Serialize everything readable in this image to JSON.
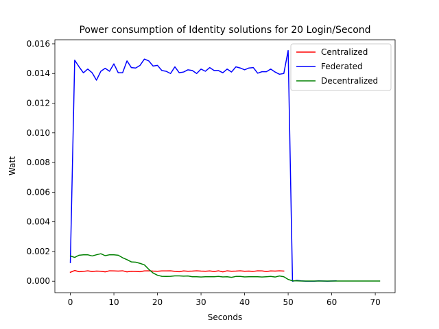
{
  "chart_data": {
    "type": "line",
    "title": "Power consumption of Identity solutions for 20 Login/Second",
    "xlabel": "Seconds",
    "ylabel": "Watt",
    "xlim": [
      -3.55,
      74.55
    ],
    "ylim": [
      -0.000775,
      0.016275
    ],
    "xticks": [
      0,
      10,
      20,
      30,
      40,
      50,
      60,
      70
    ],
    "yticks": [
      0.0,
      0.002,
      0.004,
      0.006,
      0.008,
      0.01,
      0.012,
      0.014,
      0.016
    ],
    "ytick_labels": [
      "0.000",
      "0.002",
      "0.004",
      "0.006",
      "0.008",
      "0.010",
      "0.012",
      "0.014",
      "0.016"
    ],
    "legend_position": "top-right",
    "grid": false,
    "series": [
      {
        "name": "Centralized",
        "color": "#ff0000",
        "x": [
          0,
          1,
          2,
          3,
          4,
          5,
          6,
          7,
          8,
          9,
          10,
          11,
          12,
          13,
          14,
          15,
          16,
          17,
          18,
          19,
          20,
          21,
          22,
          23,
          24,
          25,
          26,
          27,
          28,
          29,
          30,
          31,
          32,
          33,
          34,
          35,
          36,
          37,
          38,
          39,
          40,
          41,
          42,
          43,
          44,
          45,
          46,
          47,
          48,
          49
        ],
        "y": [
          0.0006,
          0.00072,
          0.00064,
          0.00066,
          0.0007,
          0.00065,
          0.00068,
          0.00067,
          0.00063,
          0.0007,
          0.00069,
          0.00068,
          0.0007,
          0.00063,
          0.00067,
          0.00066,
          0.00064,
          0.00069,
          0.0007,
          0.00068,
          0.00067,
          0.00069,
          0.00069,
          0.0007,
          0.00066,
          0.00064,
          0.00069,
          0.00067,
          0.00068,
          0.0007,
          0.00068,
          0.00067,
          0.00069,
          0.00065,
          0.0007,
          0.00063,
          0.0007,
          0.00067,
          0.00068,
          0.0007,
          0.00067,
          0.00068,
          0.00066,
          0.0007,
          0.00069,
          0.00065,
          0.00069,
          0.00068,
          0.0007,
          0.00068
        ]
      },
      {
        "name": "Federated",
        "color": "#0000ff",
        "x": [
          0,
          1,
          2,
          3,
          4,
          5,
          6,
          7,
          8,
          9,
          10,
          11,
          12,
          13,
          14,
          15,
          16,
          17,
          18,
          19,
          20,
          21,
          22,
          23,
          24,
          25,
          26,
          27,
          28,
          29,
          30,
          31,
          32,
          33,
          34,
          35,
          36,
          37,
          38,
          39,
          40,
          41,
          42,
          43,
          44,
          45,
          46,
          47,
          48,
          49,
          50,
          51,
          52,
          53,
          54,
          55,
          56,
          57,
          58,
          59,
          60,
          61
        ],
        "y": [
          0.00125,
          0.0149,
          0.01445,
          0.01405,
          0.0143,
          0.01405,
          0.01355,
          0.01415,
          0.01435,
          0.01415,
          0.01465,
          0.01405,
          0.01405,
          0.01485,
          0.0144,
          0.01437,
          0.01455,
          0.01497,
          0.01485,
          0.0145,
          0.01455,
          0.0142,
          0.01415,
          0.014,
          0.01445,
          0.01405,
          0.0141,
          0.01425,
          0.0142,
          0.014,
          0.0143,
          0.01415,
          0.0144,
          0.0142,
          0.0142,
          0.01405,
          0.0143,
          0.0141,
          0.01445,
          0.01437,
          0.01425,
          0.01437,
          0.0144,
          0.01402,
          0.01412,
          0.01412,
          0.0143,
          0.0141,
          0.01395,
          0.014,
          0.01555,
          0.0,
          5e-05,
          2e-05,
          0.0,
          0.0,
          0.0,
          2e-05,
          1e-05,
          0.0,
          1e-05,
          2e-05
        ]
      },
      {
        "name": "Decentralized",
        "color": "#008000",
        "x": [
          0,
          1,
          2,
          3,
          4,
          5,
          6,
          7,
          8,
          9,
          10,
          11,
          12,
          13,
          14,
          15,
          16,
          17,
          18,
          19,
          20,
          21,
          22,
          23,
          24,
          25,
          26,
          27,
          28,
          29,
          30,
          31,
          32,
          33,
          34,
          35,
          36,
          37,
          38,
          39,
          40,
          41,
          42,
          43,
          44,
          45,
          46,
          47,
          48,
          49,
          50,
          51,
          52,
          53,
          54,
          55,
          56,
          57,
          58,
          59,
          60,
          61,
          62,
          63,
          64,
          65,
          66,
          67,
          68,
          69,
          70,
          71
        ],
        "y": [
          0.0017,
          0.0016,
          0.00175,
          0.00178,
          0.00178,
          0.0017,
          0.00178,
          0.00185,
          0.00172,
          0.00178,
          0.00178,
          0.00175,
          0.00158,
          0.00145,
          0.0013,
          0.00128,
          0.0012,
          0.0011,
          0.0008,
          0.00055,
          0.0004,
          0.00033,
          0.00032,
          0.00033,
          0.00036,
          0.00036,
          0.00034,
          0.00035,
          0.0003,
          0.0003,
          0.00028,
          0.0003,
          0.0003,
          0.0003,
          0.00032,
          0.00029,
          0.0003,
          0.00026,
          0.00032,
          0.00032,
          0.00029,
          0.0003,
          0.0003,
          0.0003,
          0.00028,
          0.0003,
          0.00032,
          0.00028,
          0.00035,
          0.0003,
          0.00012,
          2e-05,
          2e-05,
          1e-05,
          1e-05,
          1e-05,
          1e-05,
          1e-05,
          1e-05,
          1e-05,
          1e-05,
          1e-05,
          1e-05,
          1e-05,
          1e-05,
          1e-05,
          1e-05,
          1e-05,
          1e-05,
          1e-05,
          1e-05,
          1e-05
        ]
      }
    ]
  }
}
